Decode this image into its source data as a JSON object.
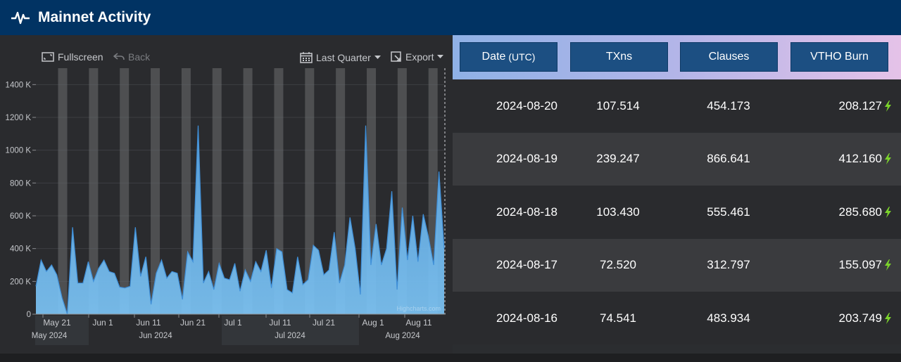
{
  "header": {
    "title": "Mainnet Activity",
    "icon": "activity-pulse-icon"
  },
  "toolbar": {
    "fullscreen_label": "Fullscreen",
    "back_label": "Back",
    "range_label": "Last Quarter",
    "export_label": "Export"
  },
  "chart_data": {
    "type": "area",
    "ylim": [
      0,
      1500
    ],
    "yticks": [
      0,
      200,
      400,
      600,
      800,
      1000,
      1200,
      1400
    ],
    "ytick_labels": [
      "0",
      "200 K",
      "400 K",
      "600 K",
      "800 K",
      "1000 K",
      "1200 K",
      "1400 K"
    ],
    "x_minor_labels": [
      "May 21",
      "Jun 1",
      "Jun 11",
      "Jun 21",
      "Jul 1",
      "Jul 11",
      "Jul 21",
      "Aug 1",
      "Aug 11"
    ],
    "x_major_labels": [
      "May 2024",
      "Jun 2024",
      "Jul 2024",
      "Aug 2024"
    ],
    "watermark": "Highcharts.com",
    "fill_color": "#7cc4f5",
    "weekend_band_color": "#6b6d70",
    "values": [
      170,
      330,
      260,
      300,
      240,
      100,
      0,
      530,
      190,
      190,
      320,
      200,
      280,
      330,
      260,
      250,
      165,
      160,
      170,
      530,
      230,
      350,
      60,
      250,
      330,
      220,
      260,
      250,
      90,
      380,
      320,
      1150,
      190,
      260,
      150,
      310,
      220,
      210,
      310,
      140,
      270,
      200,
      320,
      260,
      390,
      160,
      400,
      380,
      150,
      130,
      350,
      180,
      210,
      420,
      390,
      240,
      270,
      500,
      190,
      300,
      590,
      400,
      120,
      1150,
      300,
      550,
      300,
      400,
      750,
      150,
      650,
      330,
      600,
      320,
      610,
      470,
      300,
      870,
      400
    ]
  },
  "table": {
    "columns": [
      {
        "label": "Date",
        "sub": "(UTC)"
      },
      {
        "label": "TXns",
        "sub": ""
      },
      {
        "label": "Clauses",
        "sub": ""
      },
      {
        "label": "VTHO Burn",
        "sub": ""
      }
    ],
    "rows": [
      {
        "date": "2024-08-20",
        "txns": "107.514",
        "clauses": "454.173",
        "vtho": "208.127"
      },
      {
        "date": "2024-08-19",
        "txns": "239.247",
        "clauses": "866.641",
        "vtho": "412.160"
      },
      {
        "date": "2024-08-18",
        "txns": "103.430",
        "clauses": "555.461",
        "vtho": "285.680"
      },
      {
        "date": "2024-08-17",
        "txns": "72.520",
        "clauses": "312.797",
        "vtho": "155.097"
      },
      {
        "date": "2024-08-16",
        "txns": "74.541",
        "clauses": "483.934",
        "vtho": "203.749"
      }
    ],
    "bolt_color": "#7bd32b"
  }
}
